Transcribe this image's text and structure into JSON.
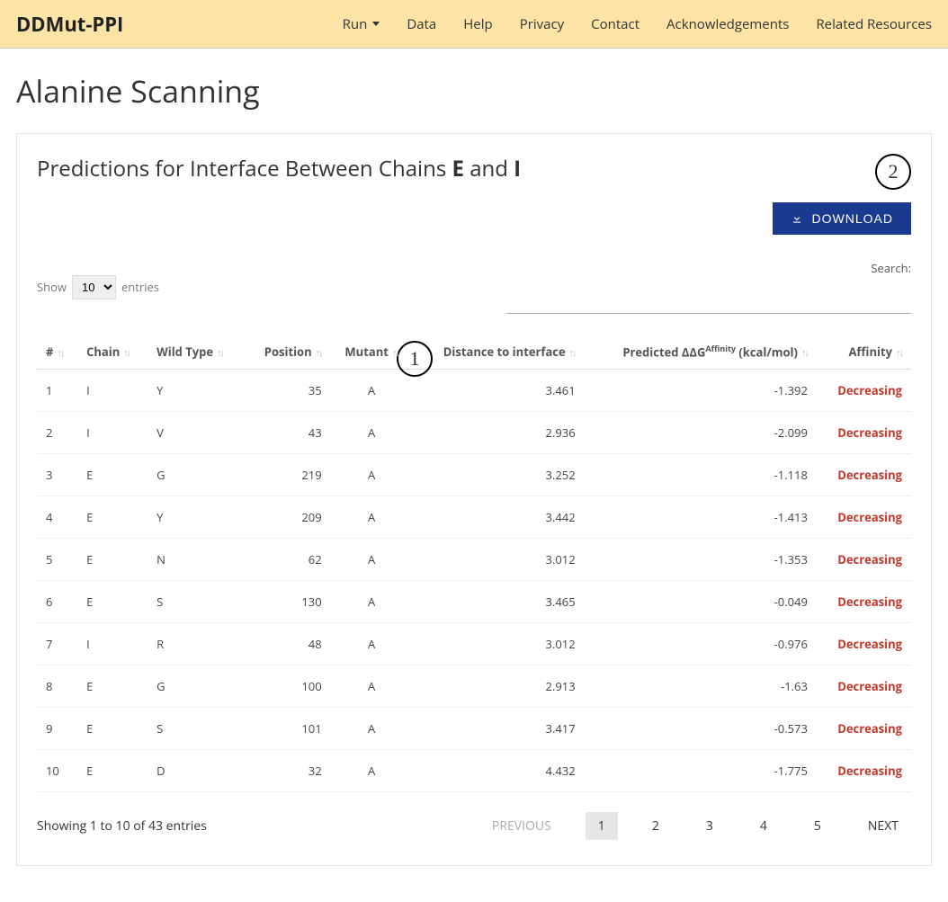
{
  "brand": "DDMut-PPI",
  "nav": [
    "Run",
    "Data",
    "Help",
    "Privacy",
    "Contact",
    "Acknowledgements",
    "Related Resources"
  ],
  "page_title": "Alanine Scanning",
  "section_title_prefix": "Predictions for Interface Between Chains ",
  "chain_a": "E",
  "chain_and": " and ",
  "chain_b": "I",
  "badge1": "1",
  "badge2": "2",
  "download_label": "DOWNLOAD",
  "show_label": "Show",
  "entries_label": "entries",
  "show_options": [
    "10"
  ],
  "show_selected": "10",
  "search_label": "Search:",
  "columns": {
    "idx": "#",
    "chain": "Chain",
    "wild": "Wild Type",
    "pos": "Position",
    "mutant": "Mutant",
    "dist": "Distance to interface",
    "ddg_pre": "Predicted ΔΔG",
    "ddg_sup": "Affinity",
    "ddg_post": " (kcal/mol)",
    "aff": "Affinity"
  },
  "rows": [
    {
      "idx": "1",
      "chain": "I",
      "wild": "Y",
      "pos": "35",
      "mut": "A",
      "dist": "3.461",
      "ddg": "-1.392",
      "aff": "Decreasing"
    },
    {
      "idx": "2",
      "chain": "I",
      "wild": "V",
      "pos": "43",
      "mut": "A",
      "dist": "2.936",
      "ddg": "-2.099",
      "aff": "Decreasing"
    },
    {
      "idx": "3",
      "chain": "E",
      "wild": "G",
      "pos": "219",
      "mut": "A",
      "dist": "3.252",
      "ddg": "-1.118",
      "aff": "Decreasing"
    },
    {
      "idx": "4",
      "chain": "E",
      "wild": "Y",
      "pos": "209",
      "mut": "A",
      "dist": "3.442",
      "ddg": "-1.413",
      "aff": "Decreasing"
    },
    {
      "idx": "5",
      "chain": "E",
      "wild": "N",
      "pos": "62",
      "mut": "A",
      "dist": "3.012",
      "ddg": "-1.353",
      "aff": "Decreasing"
    },
    {
      "idx": "6",
      "chain": "E",
      "wild": "S",
      "pos": "130",
      "mut": "A",
      "dist": "3.465",
      "ddg": "-0.049",
      "aff": "Decreasing"
    },
    {
      "idx": "7",
      "chain": "I",
      "wild": "R",
      "pos": "48",
      "mut": "A",
      "dist": "3.012",
      "ddg": "-0.976",
      "aff": "Decreasing"
    },
    {
      "idx": "8",
      "chain": "E",
      "wild": "G",
      "pos": "100",
      "mut": "A",
      "dist": "2.913",
      "ddg": "-1.63",
      "aff": "Decreasing"
    },
    {
      "idx": "9",
      "chain": "E",
      "wild": "S",
      "pos": "101",
      "mut": "A",
      "dist": "3.417",
      "ddg": "-0.573",
      "aff": "Decreasing"
    },
    {
      "idx": "10",
      "chain": "E",
      "wild": "D",
      "pos": "32",
      "mut": "A",
      "dist": "4.432",
      "ddg": "-1.775",
      "aff": "Decreasing"
    }
  ],
  "footer_info": "Showing 1 to 10 of 43 entries",
  "pagination": {
    "prev": "PREVIOUS",
    "pages": [
      "1",
      "2",
      "3",
      "4",
      "5"
    ],
    "active": "1",
    "next": "NEXT"
  },
  "colors": {
    "navbar_bg": "#fbe4a6",
    "download_bg": "#1a3a8f",
    "decreasing": "#c0392b"
  }
}
